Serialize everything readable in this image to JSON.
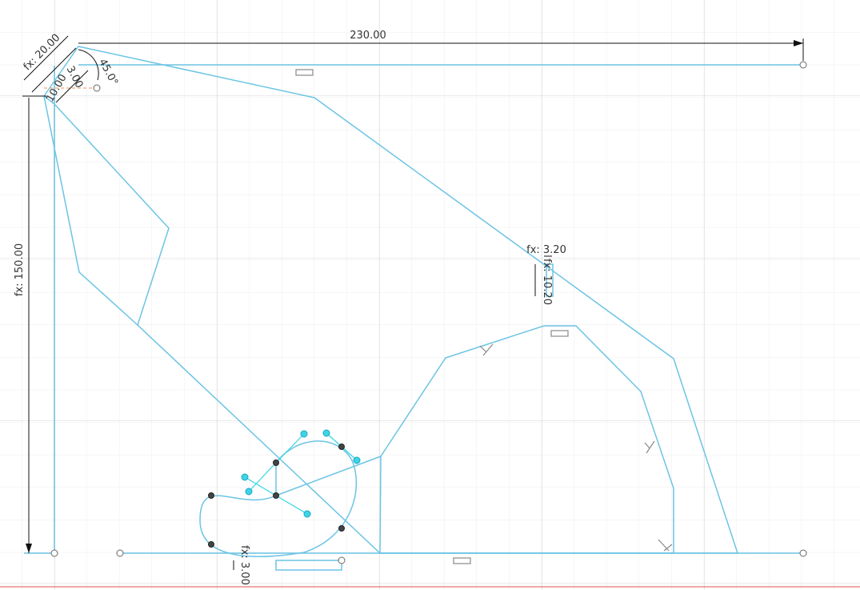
{
  "dimensions": [
    "230.00",
    "fx: 20.00",
    "45.0°",
    "fx: 150.00",
    "fx: 3.20",
    "fx: 10.20",
    "fx: 3.00",
    "3.00",
    "10.00"
  ]
}
